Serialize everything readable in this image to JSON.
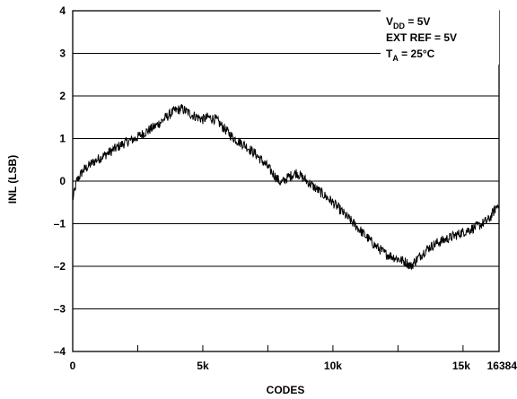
{
  "chart_data": {
    "type": "line",
    "title": "",
    "xlabel": "CODES",
    "ylabel": "INL (LSB)",
    "xlim": [
      0,
      16384
    ],
    "ylim": [
      -4,
      4
    ],
    "x_ticks": [
      {
        "value": 0,
        "label": "0"
      },
      {
        "value": 5000,
        "label": "5k"
      },
      {
        "value": 10000,
        "label": "10k"
      },
      {
        "value": 15000,
        "label": "15k"
      },
      {
        "value": 16384,
        "label": "16384"
      }
    ],
    "x_minor_ticks": [
      2500,
      7500,
      12500
    ],
    "y_ticks": [
      4,
      3,
      2,
      1,
      0,
      -1,
      -2,
      -3,
      -4
    ],
    "y_tick_labels": [
      "4",
      "3",
      "2",
      "1",
      "0",
      "–1",
      "–2",
      "–3",
      "–4"
    ],
    "grid": "horizontal",
    "conditions": {
      "vdd": {
        "prefix": "V",
        "sub": "DD",
        "suffix": " = 5V"
      },
      "ext_ref": "EXT REF = 5V",
      "ta": {
        "prefix": "T",
        "sub": "A",
        "suffix": " = 25°C"
      }
    },
    "legend_position": "top-right",
    "series": [
      {
        "style": "noisy",
        "noise_amplitude": 0.12,
        "x": [
          0,
          150,
          400,
          800,
          1200,
          1600,
          2000,
          2400,
          2800,
          3200,
          3600,
          3900,
          4200,
          4600,
          5000,
          5200,
          5500,
          5800,
          6200,
          6600,
          7000,
          7400,
          7800,
          8000,
          8300,
          8600,
          8900,
          9200,
          9600,
          10000,
          10400,
          10800,
          11200,
          11600,
          12000,
          12400,
          12800,
          13000,
          13200,
          13600,
          14000,
          14400,
          14800,
          15200,
          15600,
          16000,
          16384
        ],
        "y": [
          -0.45,
          0.0,
          0.25,
          0.45,
          0.6,
          0.75,
          0.9,
          1.0,
          1.15,
          1.3,
          1.5,
          1.65,
          1.7,
          1.55,
          1.45,
          1.5,
          1.45,
          1.25,
          1.0,
          0.85,
          0.65,
          0.4,
          0.1,
          -0.05,
          0.1,
          0.2,
          0.05,
          -0.1,
          -0.3,
          -0.5,
          -0.75,
          -1.0,
          -1.25,
          -1.5,
          -1.7,
          -1.8,
          -1.9,
          -2.0,
          -1.85,
          -1.6,
          -1.45,
          -1.35,
          -1.25,
          -1.15,
          -1.05,
          -0.9,
          -0.5
        ]
      }
    ]
  }
}
